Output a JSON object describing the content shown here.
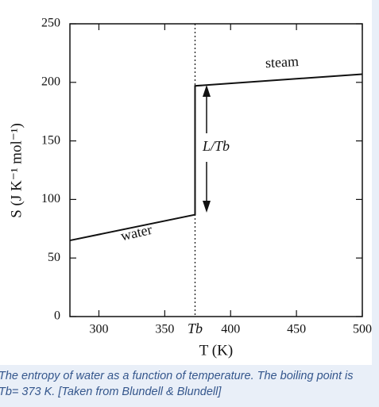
{
  "chart_data": {
    "type": "line",
    "xlabel": "T (K)",
    "ylabel": "S (J K⁻¹ mol⁻¹)",
    "annotations": [
      "steam",
      "water",
      "L/Tb"
    ],
    "x": [
      278,
      373,
      373,
      500
    ],
    "series": [
      {
        "name": "entropy",
        "color": "#111111",
        "values": [
          65,
          87,
          197,
          207
        ]
      }
    ],
    "xlim": [
      278,
      500
    ],
    "xticks": [
      300,
      350,
      {
        "value": 373,
        "label": "Tb"
      },
      400,
      450,
      500
    ],
    "ylim": [
      0,
      250
    ],
    "yticks": [
      0,
      50,
      100,
      150,
      200,
      250
    ]
  },
  "caption": "The entropy of water as a function of temperature. The boiling point is Tb= 373 K. [Taken from Blundell & Blundell]"
}
